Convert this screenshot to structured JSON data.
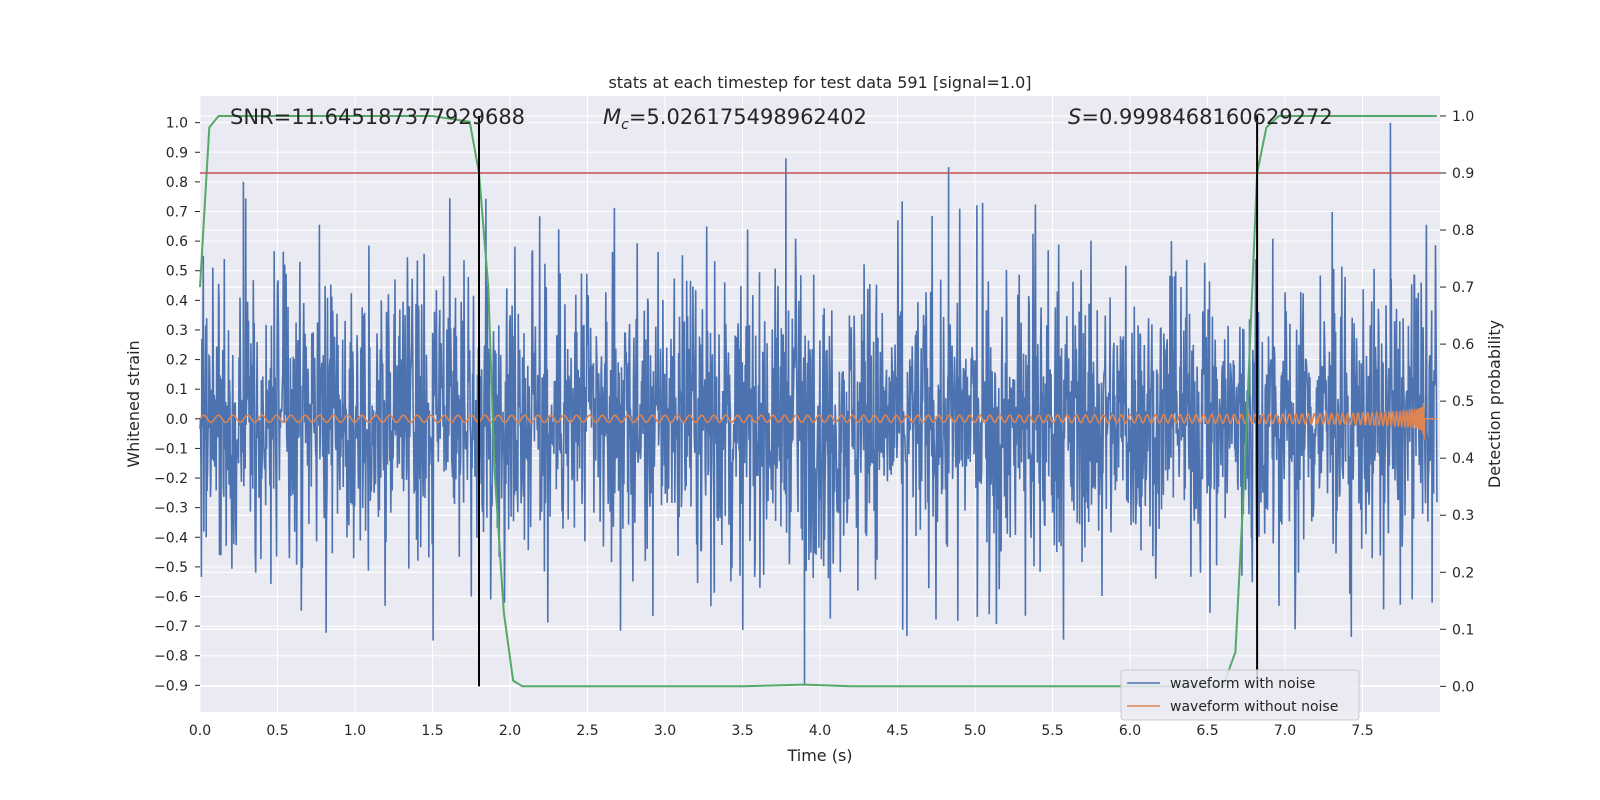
{
  "chart_data": {
    "type": "line",
    "title": "stats at each timestep for test data 591 [signal=1.0]",
    "xlabel": "Time (s)",
    "ylabel_left": "Whitened strain",
    "ylabel_right": "Detection probability",
    "xlim": [
      0.0,
      8.0
    ],
    "ylim_left": [
      -0.99,
      1.09
    ],
    "ylim_right": [
      -0.045,
      1.035
    ],
    "x_ticks": [
      "0.0",
      "0.5",
      "1.0",
      "1.5",
      "2.0",
      "2.5",
      "3.0",
      "3.5",
      "4.0",
      "4.5",
      "5.0",
      "5.5",
      "6.0",
      "6.5",
      "7.0",
      "7.5"
    ],
    "y_ticks_left": [
      "−0.9",
      "−0.8",
      "−0.7",
      "−0.6",
      "−0.5",
      "−0.4",
      "−0.3",
      "−0.2",
      "−0.1",
      "0.0",
      "0.1",
      "0.2",
      "0.3",
      "0.4",
      "0.5",
      "0.6",
      "0.7",
      "0.8",
      "0.9",
      "1.0"
    ],
    "y_ticks_right": [
      "0.0",
      "0.1",
      "0.2",
      "0.3",
      "0.4",
      "0.5",
      "0.6",
      "0.7",
      "0.8",
      "0.9",
      "1.0"
    ],
    "grid": true,
    "legend_position": "bottom-right",
    "annotations": {
      "snr": "SNR=11.645187377929688",
      "mc_symbol": "M",
      "mc_sub": "c",
      "mc_value": "=5.026175498962402",
      "s_symbol": "S",
      "s_value": "=0.9998468160629272"
    },
    "threshold_probability": 0.9,
    "detection_boundaries_x": [
      1.8,
      6.82
    ],
    "series": [
      {
        "name": "waveform with noise",
        "color": "#4c72b0",
        "description_note": "",
        "x_range": [
          0.0,
          7.98
        ],
        "y_extent": [
          -0.9,
          1.0
        ],
        "spikes": [
          {
            "x": 0.28,
            "y": 0.8
          },
          {
            "x": 1.75,
            "y": -0.6
          },
          {
            "x": 3.78,
            "y": 0.88
          },
          {
            "x": 3.9,
            "y": -0.9
          },
          {
            "x": 4.83,
            "y": 0.85
          },
          {
            "x": 7.68,
            "y": 1.0
          }
        ]
      },
      {
        "name": "waveform without noise",
        "color": "#dd8452",
        "x_range": [
          0.0,
          7.98
        ],
        "chirp_peak_amplitude": 0.22,
        "merger_time": 7.9
      },
      {
        "name": "",
        "color": "#55a868",
        "axis": "right",
        "points": [
          [
            0.0,
            0.7
          ],
          [
            0.06,
            0.98
          ],
          [
            0.12,
            1.0
          ],
          [
            1.5,
            1.0
          ],
          [
            1.74,
            0.99
          ],
          [
            1.8,
            0.9
          ],
          [
            1.86,
            0.7
          ],
          [
            1.9,
            0.38
          ],
          [
            1.96,
            0.13
          ],
          [
            2.02,
            0.01
          ],
          [
            2.08,
            0.0
          ],
          [
            3.5,
            0.0
          ],
          [
            3.9,
            0.003
          ],
          [
            4.2,
            0.0
          ],
          [
            6.6,
            0.0
          ],
          [
            6.68,
            0.06
          ],
          [
            6.74,
            0.38
          ],
          [
            6.82,
            0.9
          ],
          [
            6.88,
            0.98
          ],
          [
            6.96,
            1.0
          ],
          [
            7.98,
            1.0
          ]
        ]
      }
    ]
  },
  "legend": [
    {
      "label": "waveform with noise",
      "color": "#4c72b0"
    },
    {
      "label": "waveform without noise",
      "color": "#dd8452"
    }
  ],
  "colors": {
    "axes_bg": "#eaeaf2",
    "grid": "#ffffff",
    "threshold": "#c44e52",
    "boundary": "#000000",
    "probability": "#55a868"
  }
}
